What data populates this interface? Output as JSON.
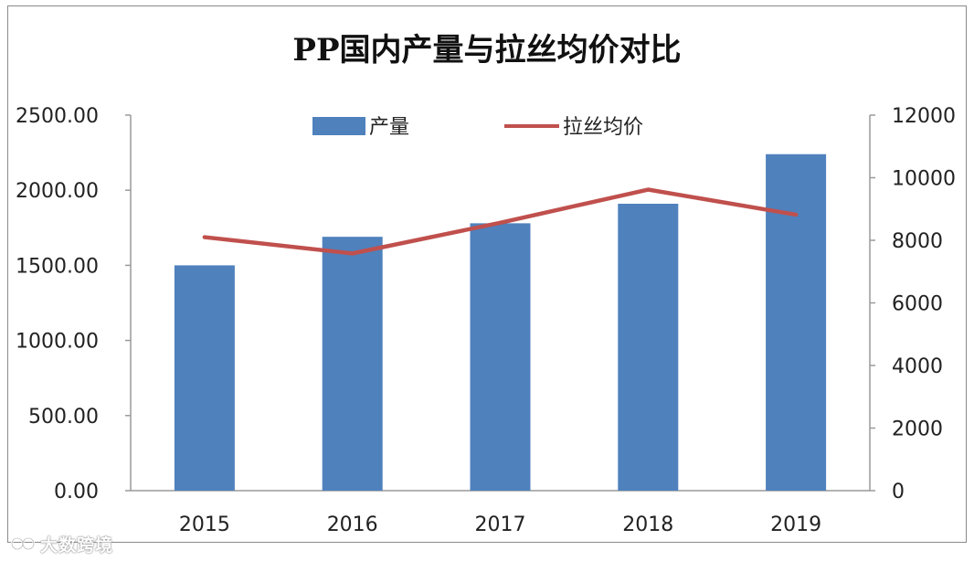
{
  "chart_data": {
    "type": "bar",
    "title": "PP国内产量与拉丝均价对比",
    "categories": [
      "2015",
      "2016",
      "2017",
      "2018",
      "2019"
    ],
    "series": [
      {
        "name": "产量",
        "type": "bar",
        "axis": "left",
        "color": "#4f81bd",
        "values": [
          1500,
          1690,
          1780,
          1910,
          2240
        ]
      },
      {
        "name": "拉丝均价",
        "type": "line",
        "axis": "right",
        "color": "#c0504d",
        "values": [
          8100,
          7580,
          8560,
          9620,
          8820
        ]
      }
    ],
    "y_left": {
      "ylim": [
        0,
        2500
      ],
      "ticks": [
        "0.00",
        "500.00",
        "1000.00",
        "1500.00",
        "2000.00",
        "2500.00"
      ]
    },
    "y_right": {
      "ylim": [
        0,
        12000
      ],
      "ticks": [
        "0",
        "2000",
        "4000",
        "6000",
        "8000",
        "10000",
        "12000"
      ]
    },
    "legend": {
      "position": "top",
      "items": [
        "产量",
        "拉丝均价"
      ]
    },
    "grid": false
  },
  "watermark": {
    "text": "大数跨境"
  }
}
